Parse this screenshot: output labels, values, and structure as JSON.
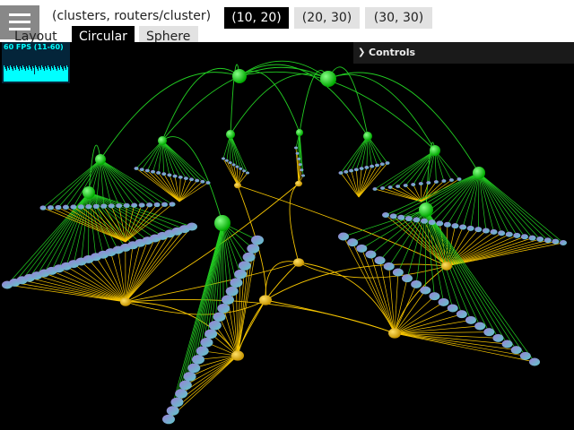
{
  "toolbar": {
    "menu_icon": "hamburger-menu-icon",
    "param_label": "(clusters, routers/cluster)",
    "options": [
      {
        "label": "(10, 20)",
        "active": true
      },
      {
        "label": "(20, 30)",
        "active": false
      },
      {
        "label": "(30, 30)",
        "active": false
      }
    ],
    "layout_label": "Layout",
    "layouts": [
      {
        "label": "Circular",
        "active": true
      },
      {
        "label": "Sphere",
        "active": false
      }
    ]
  },
  "stats": {
    "fps_text": "60 FPS (11-60)"
  },
  "controls": {
    "label": "Controls",
    "arrow_icon": "chevron-right-icon"
  },
  "colors": {
    "background": "#000000",
    "green_edges": "#22cc22",
    "yellow_edges": "#f5c400",
    "node_purple": "#9b7fd6",
    "node_teal": "#5fc9c9",
    "fps_accent": "#00ffff"
  }
}
